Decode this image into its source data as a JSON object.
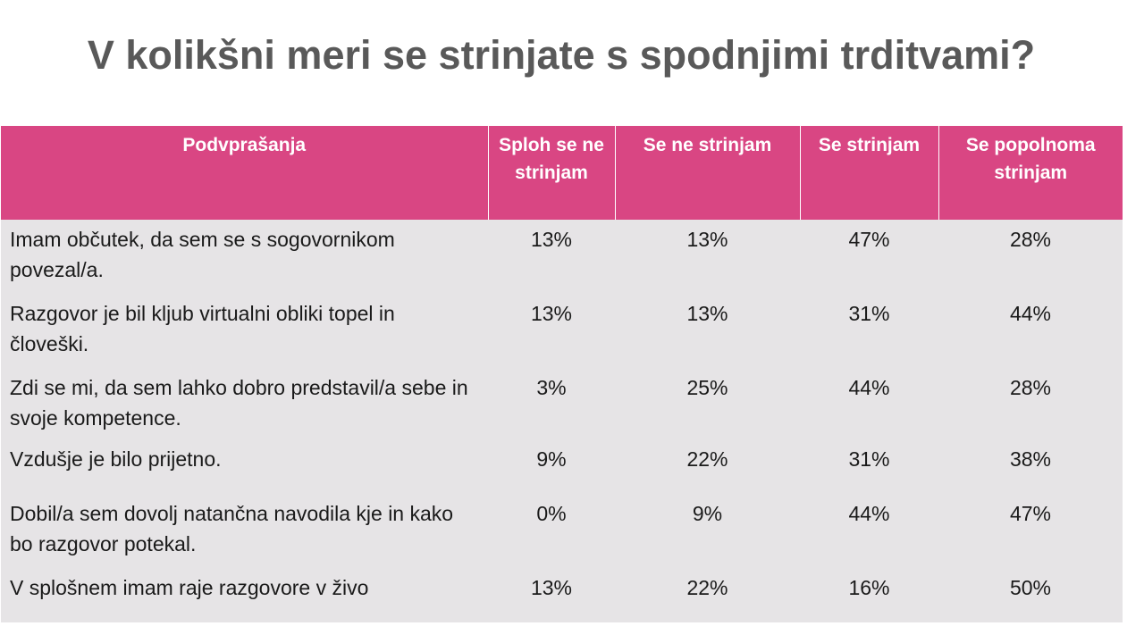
{
  "title": "V kolikšni meri se strinjate s spodnjimi trditvami?",
  "table": {
    "headers": [
      "Podvprašanja",
      "Sploh se ne strinjam",
      "Se ne strinjam",
      "Se strinjam",
      "Se popolnoma strinjam"
    ],
    "rows": [
      {
        "statement": "Imam občutek, da sem se s sogovornikom povezal/a.",
        "values": [
          "13%",
          "13%",
          "47%",
          "28%"
        ]
      },
      {
        "statement": "Razgovor je bil kljub virtualni obliki topel in človeški.",
        "values": [
          "13%",
          "13%",
          "31%",
          "44%"
        ]
      },
      {
        "statement": "Zdi se mi, da sem lahko dobro predstavil/a sebe in svoje kompetence.",
        "values": [
          "3%",
          "25%",
          "44%",
          "28%"
        ]
      },
      {
        "statement": "Vzdušje je bilo prijetno.",
        "values": [
          "9%",
          "22%",
          "31%",
          "38%"
        ]
      },
      {
        "statement": "Dobil/a sem dovolj natančna navodila kje in kako bo razgovor potekal.",
        "values": [
          "0%",
          "9%",
          "44%",
          "47%"
        ]
      },
      {
        "statement": "V splošnem imam raje razgovore v živo",
        "values": [
          "13%",
          "22%",
          "16%",
          "50%"
        ]
      }
    ]
  },
  "colors": {
    "header_bg": "#d94683",
    "row_bg": "#e6e4e6",
    "title": "#595959"
  }
}
